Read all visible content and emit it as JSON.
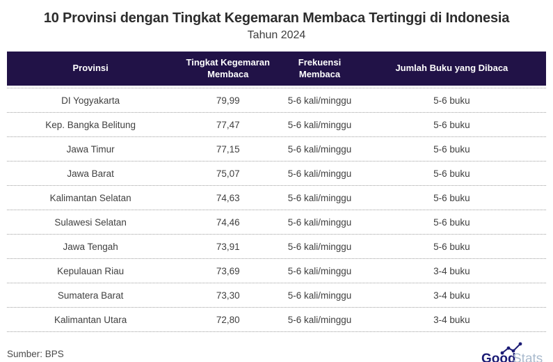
{
  "header": {
    "title": "10 Provinsi dengan Tingkat Kegemaran Membaca Tertinggi di Indonesia",
    "subtitle": "Tahun 2024"
  },
  "chart_data": {
    "type": "table",
    "title": "10 Provinsi dengan Tingkat Kegemaran Membaca Tertinggi di Indonesia",
    "subtitle": "Tahun 2024",
    "columns": [
      "Provinsi",
      "Tingkat Kegemaran Membaca",
      "Frekuensi Membaca",
      "Jumlah Buku yang Dibaca"
    ],
    "rows": [
      [
        "DI Yogyakarta",
        "79,99",
        "5-6 kali/minggu",
        "5-6 buku"
      ],
      [
        "Kep. Bangka Belitung",
        "77,47",
        "5-6 kali/minggu",
        "5-6 buku"
      ],
      [
        "Jawa Timur",
        "77,15",
        "5-6 kali/minggu",
        "5-6 buku"
      ],
      [
        "Jawa Barat",
        "75,07",
        "5-6 kali/minggu",
        "5-6 buku"
      ],
      [
        "Kalimantan Selatan",
        "74,63",
        "5-6 kali/minggu",
        "5-6 buku"
      ],
      [
        "Sulawesi Selatan",
        "74,46",
        "5-6 kali/minggu",
        "5-6 buku"
      ],
      [
        "Jawa Tengah",
        "73,91",
        "5-6 kali/minggu",
        "5-6 buku"
      ],
      [
        "Kepulauan Riau",
        "73,69",
        "5-6 kali/minggu",
        "3-4 buku"
      ],
      [
        "Sumatera Barat",
        "73,30",
        "5-6 kali/minggu",
        "3-4 buku"
      ],
      [
        "Kalimantan Utara",
        "72,80",
        "5-6 kali/minggu",
        "3-4 buku"
      ]
    ],
    "legend_position": "none",
    "grid": "dotted-row-separators"
  },
  "footer": {
    "source": "Sumber: BPS",
    "logo_bold": "Good",
    "logo_light": "Stats"
  },
  "colors": {
    "table_header_bg": "#211247",
    "title_text": "#2d2d2d",
    "row_text": "#404040",
    "separator": "#9e9e9e",
    "logo_navy": "#1b1b75",
    "logo_light": "#a9bacd"
  }
}
